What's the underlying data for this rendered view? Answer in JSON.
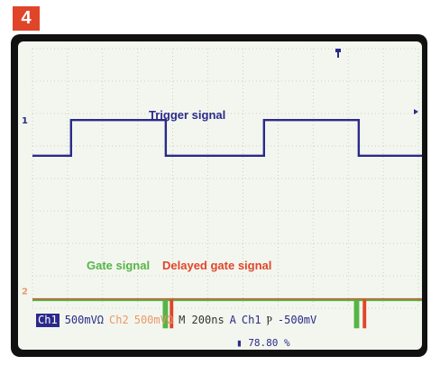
{
  "figure_number": "4",
  "colors": {
    "trigger": "#2b2a8a",
    "gate": "#55b547",
    "delayed": "#e0452a",
    "ch2": "#e89a6a",
    "grid": "#bfc8b8",
    "screen": "#f3f6ee"
  },
  "readout": {
    "ch1_label": "Ch1",
    "ch1_scale": "500mVΩ",
    "ch2_label": "Ch2",
    "ch2_scale": "500mVΩ",
    "timebase": "M 200ns",
    "trigger_mode": "A",
    "trigger_source": "Ch1",
    "trigger_slope_symbol": "Ⲣ",
    "trigger_level": "-500mV",
    "trigger_position": "78.80 %"
  },
  "markers": {
    "ch1_marker": "1",
    "ch2_marker": "2",
    "trigger_marker_icon": "trigger-position-icon"
  },
  "chart_data": {
    "type": "line",
    "title": "",
    "series": [
      {
        "name": "Trigger signal",
        "channel": "Ch1",
        "points_t_div": [
          [
            0,
            0
          ],
          [
            1.1,
            0
          ],
          [
            1.1,
            1
          ],
          [
            3.8,
            1
          ],
          [
            3.8,
            0
          ],
          [
            6.6,
            0
          ],
          [
            6.6,
            1
          ],
          [
            9.3,
            1
          ],
          [
            9.3,
            0
          ],
          [
            11.3,
            0
          ]
        ],
        "high_div": 3.3,
        "low_div": 2.2
      },
      {
        "name": "Gate signal",
        "channel": "Ch2",
        "level_div": -1.6,
        "pulses": [
          {
            "t_start_div": 3.2,
            "t_end_div": 3.35,
            "depth_div": 1.6
          },
          {
            "t_start_div": 8.65,
            "t_end_div": 8.8,
            "depth_div": 1.6
          }
        ]
      },
      {
        "name": "Delayed gate signal",
        "channel": "Ch2",
        "level_div": -1.6,
        "pulses": [
          {
            "t_start_div": 3.4,
            "t_end_div": 3.5,
            "depth_div": 1.6
          },
          {
            "t_start_div": 8.9,
            "t_end_div": 9.0,
            "depth_div": 1.6
          }
        ]
      }
    ],
    "x_divisions": 11,
    "y_divisions": 8,
    "grid": true
  }
}
